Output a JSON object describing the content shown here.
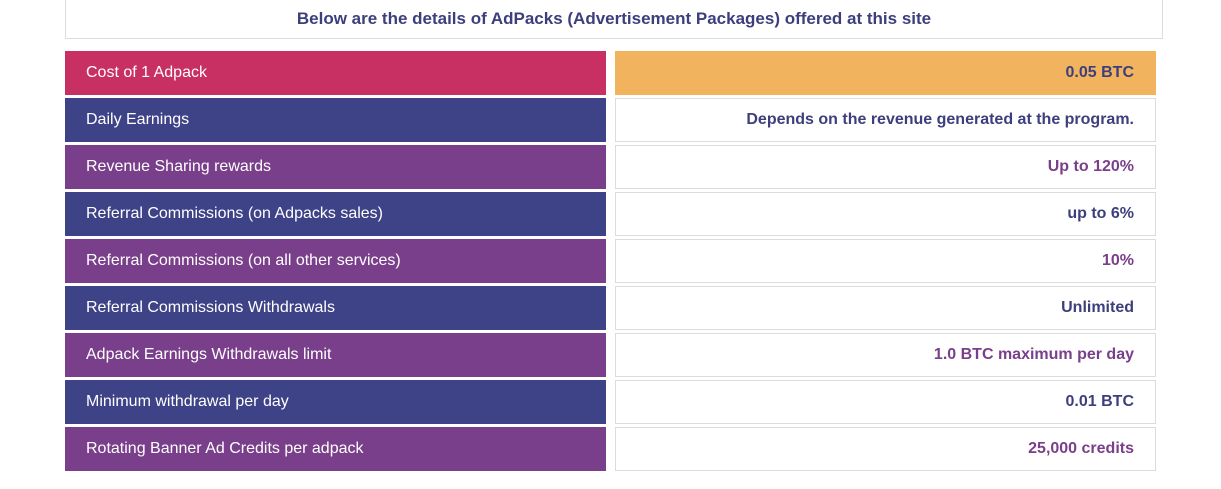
{
  "header": {
    "title": "Below are the details of AdPacks (Advertisement Packages) offered at this site"
  },
  "colors": {
    "pink": "#c82f62",
    "navy": "#3e4287",
    "purple": "#7a3f8a",
    "orange": "#f2b35e"
  },
  "rows": [
    {
      "label": "Cost of 1 Adpack",
      "value": "0.05 BTC"
    },
    {
      "label": "Daily Earnings",
      "value": "Depends on the revenue generated at the program."
    },
    {
      "label": "Revenue Sharing rewards",
      "value": "Up to 120%"
    },
    {
      "label": "Referral Commissions (on Adpacks sales)",
      "value": "up to 6%"
    },
    {
      "label": "Referral Commissions (on all other services)",
      "value": "10%"
    },
    {
      "label": "Referral Commissions Withdrawals",
      "value": "Unlimited"
    },
    {
      "label": "Adpack Earnings Withdrawals limit",
      "value": "1.0 BTC maximum per day"
    },
    {
      "label": "Minimum withdrawal per day",
      "value": "0.01 BTC"
    },
    {
      "label": "Rotating Banner Ad Credits per adpack",
      "value": "25,000 credits"
    }
  ]
}
